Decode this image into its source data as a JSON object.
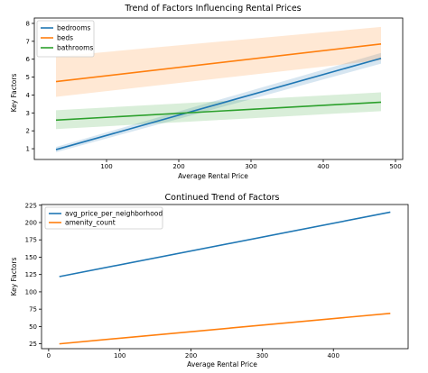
{
  "chart_data": [
    {
      "type": "line",
      "title": "Trend of Factors Influencing Rental Prices",
      "xlabel": "Average Rental Price",
      "ylabel": "Key Factors",
      "xlim": [
        0,
        510
      ],
      "ylim": [
        0.4,
        8.3
      ],
      "xticks": [
        100,
        200,
        300,
        400,
        500
      ],
      "yticks": [
        1,
        2,
        3,
        4,
        5,
        6,
        7,
        8
      ],
      "grid": false,
      "legend": "top-left",
      "series": [
        {
          "name": "bedrooms",
          "color": "#1f77b4",
          "x": [
            30,
            480
          ],
          "y": [
            0.95,
            6.05
          ],
          "band_lower": [
            0.8,
            5.75
          ],
          "band_upper": [
            1.1,
            6.35
          ]
        },
        {
          "name": "beds",
          "color": "#ff7f0e",
          "x": [
            30,
            480
          ],
          "y": [
            4.75,
            6.85
          ],
          "band_lower": [
            3.9,
            5.95
          ],
          "band_upper": [
            6.15,
            7.8
          ]
        },
        {
          "name": "bathrooms",
          "color": "#2ca02c",
          "x": [
            30,
            480
          ],
          "y": [
            2.6,
            3.6
          ],
          "band_lower": [
            2.1,
            3.1
          ],
          "band_upper": [
            3.15,
            4.15
          ]
        }
      ]
    },
    {
      "type": "line",
      "title": "Continued Trend of Factors",
      "xlabel": "Average Rental Price",
      "ylabel": "Key Factors",
      "xlim": [
        -10,
        505
      ],
      "ylim": [
        18,
        226
      ],
      "xticks": [
        0,
        100,
        200,
        300,
        400
      ],
      "yticks": [
        25,
        50,
        75,
        100,
        125,
        150,
        175,
        200,
        225
      ],
      "grid": false,
      "legend": "top-left",
      "series": [
        {
          "name": "avg_price_per_neighborhood",
          "color": "#1f77b4",
          "x": [
            15,
            480
          ],
          "y": [
            122,
            215
          ]
        },
        {
          "name": "amenity_count",
          "color": "#ff7f0e",
          "x": [
            15,
            480
          ],
          "y": [
            25,
            69
          ]
        }
      ]
    }
  ]
}
